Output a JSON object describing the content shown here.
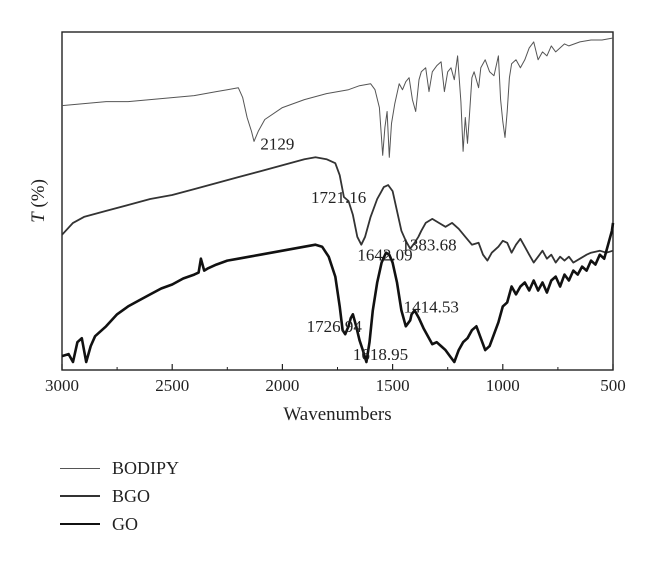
{
  "chart_data": {
    "type": "line",
    "xlabel": "Wavenumbers",
    "ylabel": "T (%)",
    "xlim": [
      3000,
      500
    ],
    "x_inverted": true,
    "x_ticks": [
      3000,
      2500,
      2000,
      1500,
      1000,
      500
    ],
    "y_ticks_shown": false,
    "grid": false,
    "legend_position": "bottom-left, below plot",
    "series": [
      {
        "name": "BODIPY",
        "line_weight": "thin",
        "color": "#555555",
        "points": [
          [
            3000,
            71
          ],
          [
            2900,
            72
          ],
          [
            2800,
            73
          ],
          [
            2700,
            73
          ],
          [
            2600,
            74
          ],
          [
            2500,
            75
          ],
          [
            2400,
            76
          ],
          [
            2300,
            78
          ],
          [
            2250,
            79
          ],
          [
            2200,
            80
          ],
          [
            2180,
            75
          ],
          [
            2160,
            65
          ],
          [
            2140,
            58
          ],
          [
            2129,
            53
          ],
          [
            2110,
            58
          ],
          [
            2080,
            64
          ],
          [
            2000,
            70
          ],
          [
            1900,
            74
          ],
          [
            1800,
            77
          ],
          [
            1700,
            79
          ],
          [
            1650,
            81
          ],
          [
            1600,
            82
          ],
          [
            1580,
            79
          ],
          [
            1560,
            70
          ],
          [
            1545,
            46
          ],
          [
            1535,
            60
          ],
          [
            1525,
            68
          ],
          [
            1515,
            45
          ],
          [
            1505,
            62
          ],
          [
            1490,
            72
          ],
          [
            1470,
            82
          ],
          [
            1455,
            79
          ],
          [
            1440,
            83
          ],
          [
            1425,
            85
          ],
          [
            1410,
            74
          ],
          [
            1395,
            68
          ],
          [
            1380,
            84
          ],
          [
            1370,
            88
          ],
          [
            1350,
            90
          ],
          [
            1335,
            78
          ],
          [
            1320,
            88
          ],
          [
            1300,
            91
          ],
          [
            1280,
            93
          ],
          [
            1265,
            78
          ],
          [
            1250,
            88
          ],
          [
            1235,
            90
          ],
          [
            1220,
            84
          ],
          [
            1205,
            96
          ],
          [
            1190,
            73
          ],
          [
            1180,
            48
          ],
          [
            1170,
            65
          ],
          [
            1160,
            52
          ],
          [
            1150,
            68
          ],
          [
            1140,
            85
          ],
          [
            1130,
            88
          ],
          [
            1110,
            80
          ],
          [
            1100,
            90
          ],
          [
            1080,
            94
          ],
          [
            1060,
            88
          ],
          [
            1040,
            86
          ],
          [
            1020,
            96
          ],
          [
            1010,
            74
          ],
          [
            1000,
            63
          ],
          [
            990,
            55
          ],
          [
            980,
            68
          ],
          [
            970,
            85
          ],
          [
            960,
            92
          ],
          [
            940,
            94
          ],
          [
            920,
            90
          ],
          [
            900,
            94
          ],
          [
            880,
            100
          ],
          [
            860,
            103
          ],
          [
            840,
            94
          ],
          [
            820,
            98
          ],
          [
            800,
            96
          ],
          [
            780,
            101
          ],
          [
            760,
            98
          ],
          [
            740,
            100
          ],
          [
            720,
            102
          ],
          [
            700,
            101
          ],
          [
            650,
            103
          ],
          [
            600,
            104
          ],
          [
            550,
            104
          ],
          [
            500,
            105
          ]
        ]
      },
      {
        "name": "BGO",
        "line_weight": "medium",
        "color": "#333333",
        "points": [
          [
            3000,
            6
          ],
          [
            2950,
            12
          ],
          [
            2900,
            15
          ],
          [
            2800,
            18
          ],
          [
            2700,
            21
          ],
          [
            2600,
            24
          ],
          [
            2500,
            26
          ],
          [
            2400,
            29
          ],
          [
            2300,
            32
          ],
          [
            2200,
            35
          ],
          [
            2100,
            38
          ],
          [
            2000,
            41
          ],
          [
            1900,
            44
          ],
          [
            1850,
            45
          ],
          [
            1800,
            44
          ],
          [
            1760,
            42
          ],
          [
            1740,
            36
          ],
          [
            1721,
            25
          ],
          [
            1700,
            23
          ],
          [
            1680,
            16
          ],
          [
            1660,
            5
          ],
          [
            1642,
            1
          ],
          [
            1625,
            5
          ],
          [
            1600,
            15
          ],
          [
            1570,
            24
          ],
          [
            1540,
            30
          ],
          [
            1520,
            31
          ],
          [
            1500,
            28
          ],
          [
            1480,
            18
          ],
          [
            1460,
            8
          ],
          [
            1440,
            3
          ],
          [
            1420,
            -1
          ],
          [
            1400,
            2
          ],
          [
            1383,
            5
          ],
          [
            1370,
            8
          ],
          [
            1350,
            12
          ],
          [
            1320,
            14
          ],
          [
            1290,
            12
          ],
          [
            1260,
            10
          ],
          [
            1230,
            12
          ],
          [
            1200,
            9
          ],
          [
            1170,
            5
          ],
          [
            1140,
            1
          ],
          [
            1110,
            2
          ],
          [
            1090,
            -4
          ],
          [
            1070,
            -7
          ],
          [
            1050,
            -3
          ],
          [
            1020,
            0
          ],
          [
            1000,
            3
          ],
          [
            980,
            2
          ],
          [
            960,
            -3
          ],
          [
            940,
            1
          ],
          [
            920,
            4
          ],
          [
            900,
            0
          ],
          [
            880,
            -4
          ],
          [
            860,
            -8
          ],
          [
            840,
            -5
          ],
          [
            820,
            -2
          ],
          [
            800,
            -6
          ],
          [
            780,
            -4
          ],
          [
            760,
            -8
          ],
          [
            740,
            -5
          ],
          [
            720,
            -7
          ],
          [
            700,
            -5
          ],
          [
            680,
            -8
          ],
          [
            650,
            -6
          ],
          [
            620,
            -4
          ],
          [
            600,
            -3
          ],
          [
            560,
            -2
          ],
          [
            530,
            -3
          ],
          [
            500,
            -2
          ]
        ]
      },
      {
        "name": "GO",
        "line_weight": "thick",
        "color": "#111111",
        "points": [
          [
            3000,
            -55
          ],
          [
            2970,
            -54
          ],
          [
            2950,
            -58
          ],
          [
            2930,
            -48
          ],
          [
            2910,
            -46
          ],
          [
            2890,
            -58
          ],
          [
            2870,
            -50
          ],
          [
            2850,
            -45
          ],
          [
            2800,
            -40
          ],
          [
            2750,
            -34
          ],
          [
            2700,
            -30
          ],
          [
            2650,
            -27
          ],
          [
            2600,
            -24
          ],
          [
            2550,
            -21
          ],
          [
            2500,
            -19
          ],
          [
            2450,
            -16
          ],
          [
            2400,
            -14
          ],
          [
            2380,
            -13
          ],
          [
            2370,
            -6
          ],
          [
            2355,
            -12
          ],
          [
            2340,
            -11
          ],
          [
            2300,
            -9
          ],
          [
            2250,
            -7
          ],
          [
            2200,
            -6
          ],
          [
            2150,
            -5
          ],
          [
            2100,
            -4
          ],
          [
            2050,
            -3
          ],
          [
            2000,
            -2
          ],
          [
            1950,
            -1
          ],
          [
            1900,
            0
          ],
          [
            1850,
            1
          ],
          [
            1820,
            0
          ],
          [
            1790,
            -5
          ],
          [
            1760,
            -15
          ],
          [
            1740,
            -30
          ],
          [
            1727,
            -42
          ],
          [
            1715,
            -44
          ],
          [
            1700,
            -40
          ],
          [
            1690,
            -36
          ],
          [
            1680,
            -34
          ],
          [
            1665,
            -40
          ],
          [
            1650,
            -47
          ],
          [
            1635,
            -52
          ],
          [
            1619,
            -58
          ],
          [
            1605,
            -48
          ],
          [
            1590,
            -32
          ],
          [
            1570,
            -18
          ],
          [
            1550,
            -8
          ],
          [
            1530,
            -3
          ],
          [
            1515,
            -4
          ],
          [
            1500,
            -8
          ],
          [
            1480,
            -18
          ],
          [
            1460,
            -32
          ],
          [
            1440,
            -40
          ],
          [
            1420,
            -37
          ],
          [
            1414,
            -34
          ],
          [
            1400,
            -32
          ],
          [
            1380,
            -36
          ],
          [
            1360,
            -41
          ],
          [
            1340,
            -45
          ],
          [
            1320,
            -49
          ],
          [
            1300,
            -48
          ],
          [
            1280,
            -50
          ],
          [
            1260,
            -52
          ],
          [
            1240,
            -55
          ],
          [
            1220,
            -58
          ],
          [
            1200,
            -52
          ],
          [
            1180,
            -48
          ],
          [
            1160,
            -46
          ],
          [
            1140,
            -42
          ],
          [
            1120,
            -40
          ],
          [
            1100,
            -46
          ],
          [
            1080,
            -52
          ],
          [
            1060,
            -50
          ],
          [
            1040,
            -44
          ],
          [
            1020,
            -38
          ],
          [
            1000,
            -30
          ],
          [
            980,
            -28
          ],
          [
            960,
            -20
          ],
          [
            940,
            -24
          ],
          [
            920,
            -20
          ],
          [
            900,
            -18
          ],
          [
            880,
            -22
          ],
          [
            860,
            -17
          ],
          [
            840,
            -22
          ],
          [
            820,
            -18
          ],
          [
            800,
            -23
          ],
          [
            780,
            -17
          ],
          [
            760,
            -15
          ],
          [
            740,
            -20
          ],
          [
            720,
            -14
          ],
          [
            700,
            -17
          ],
          [
            680,
            -12
          ],
          [
            660,
            -14
          ],
          [
            640,
            -10
          ],
          [
            620,
            -12
          ],
          [
            600,
            -7
          ],
          [
            580,
            -9
          ],
          [
            560,
            -4
          ],
          [
            540,
            -6
          ],
          [
            520,
            2
          ],
          [
            505,
            8
          ],
          [
            500,
            12
          ]
        ]
      }
    ],
    "annotations": [
      {
        "text": "2129",
        "x": 2100,
        "y": 49
      },
      {
        "text": "1721.16",
        "x": 1870,
        "y": 22
      },
      {
        "text": "1642.09",
        "x": 1660,
        "y": -7
      },
      {
        "text": "1383.68",
        "x": 1460,
        "y": -2
      },
      {
        "text": "1726.94",
        "x": 1890,
        "y": -43
      },
      {
        "text": "1618.95",
        "x": 1680,
        "y": -57
      },
      {
        "text": "1414.53",
        "x": 1450,
        "y": -33
      }
    ],
    "ylim": [
      -62,
      108
    ]
  }
}
